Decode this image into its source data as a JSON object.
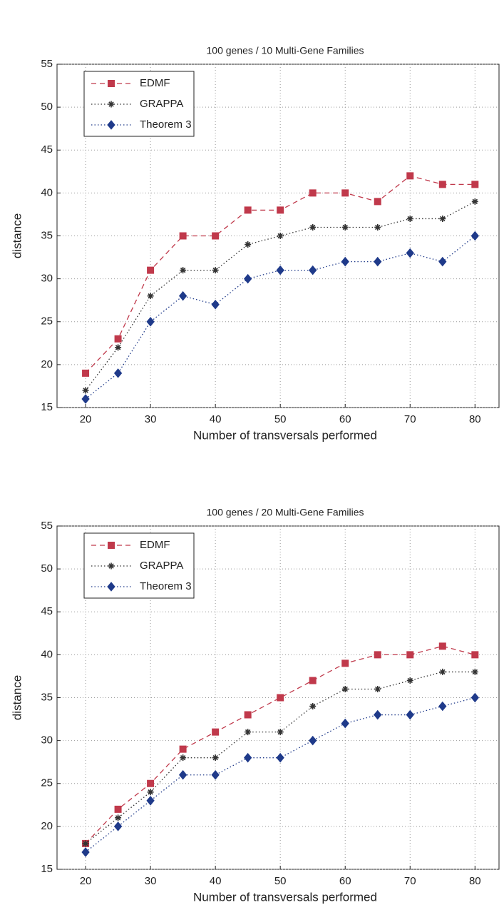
{
  "chart_data": [
    {
      "type": "line",
      "title": "100 genes / 10 Multi-Gene Families",
      "x_label": "Number of transversals performed",
      "y_label": "distance",
      "x": [
        20,
        25,
        30,
        35,
        40,
        45,
        50,
        55,
        60,
        65,
        70,
        75,
        80
      ],
      "series": [
        {
          "name": "EDMF",
          "color": "#c0394b",
          "marker": "square",
          "line_style": "dashed",
          "values": [
            19,
            23,
            31,
            35,
            35,
            38,
            38,
            40,
            40,
            39,
            42,
            41,
            41
          ]
        },
        {
          "name": "GRAPPA",
          "color": "#333333",
          "marker": "star",
          "line_style": "dotted",
          "values": [
            17,
            22,
            28,
            31,
            31,
            34,
            35,
            36,
            36,
            36,
            37,
            37,
            39
          ]
        },
        {
          "name": "Theorem 3",
          "color": "#1f3a8a",
          "marker": "diamond",
          "line_style": "dotted",
          "values": [
            16,
            19,
            25,
            28,
            27,
            30,
            31,
            31,
            32,
            32,
            33,
            32,
            35
          ]
        }
      ],
      "xlim": [
        15.6,
        83.7
      ],
      "ylim": [
        15,
        55
      ],
      "xticks": [
        20,
        30,
        40,
        50,
        60,
        70,
        80
      ],
      "yticks": [
        15,
        20,
        25,
        30,
        35,
        40,
        45,
        50,
        55
      ],
      "grid": true,
      "legend": "upper left"
    },
    {
      "type": "line",
      "title": "100 genes / 20 Multi-Gene Families",
      "x_label": "Number of transversals performed",
      "y_label": "distance",
      "x": [
        20,
        25,
        30,
        35,
        40,
        45,
        50,
        55,
        60,
        65,
        70,
        75,
        80
      ],
      "series": [
        {
          "name": "EDMF",
          "color": "#c0394b",
          "marker": "square",
          "line_style": "dashed",
          "values": [
            18,
            22,
            25,
            29,
            31,
            33,
            35,
            37,
            39,
            40,
            40,
            41,
            40
          ]
        },
        {
          "name": "GRAPPA",
          "color": "#333333",
          "marker": "star",
          "line_style": "dotted",
          "values": [
            18,
            21,
            24,
            28,
            28,
            31,
            31,
            34,
            36,
            36,
            37,
            38,
            38
          ]
        },
        {
          "name": "Theorem 3",
          "color": "#1f3a8a",
          "marker": "diamond",
          "line_style": "dotted",
          "values": [
            17,
            20,
            23,
            26,
            26,
            28,
            28,
            30,
            32,
            33,
            33,
            34,
            35
          ]
        }
      ],
      "xlim": [
        15.6,
        83.7
      ],
      "ylim": [
        15,
        55
      ],
      "xticks": [
        20,
        30,
        40,
        50,
        60,
        70,
        80
      ],
      "yticks": [
        15,
        20,
        25,
        30,
        35,
        40,
        45,
        50,
        55
      ],
      "grid": true,
      "legend": "upper left"
    }
  ]
}
